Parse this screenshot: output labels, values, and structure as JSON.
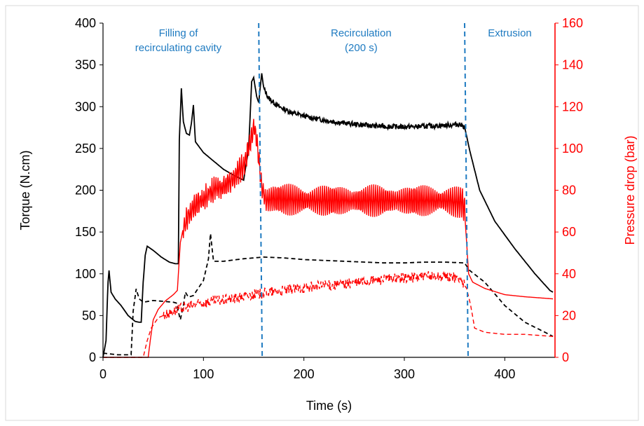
{
  "chart_data": {
    "type": "line",
    "xlabel": "Time (s)",
    "ylabel": "Torque (N.cm)",
    "y2label": "Pressure drop (bar)",
    "xlim": [
      0,
      450
    ],
    "ylim": [
      0,
      400
    ],
    "y2lim": [
      0,
      160
    ],
    "x_ticks": [
      0,
      100,
      200,
      300,
      400
    ],
    "y_ticks": [
      0,
      50,
      100,
      150,
      200,
      250,
      300,
      350,
      400
    ],
    "y2_ticks": [
      0,
      20,
      40,
      60,
      80,
      100,
      120,
      140,
      160
    ],
    "grid": false,
    "colors": {
      "torque": "#000000",
      "pressure": "#ff0000",
      "divider": "#1f7bc1",
      "annotation": "#1f7bc1",
      "right_axis": "#ff0000"
    },
    "vlines": [
      155,
      360
    ],
    "annotations": [
      {
        "lines": [
          "Filling of",
          "recirculating cavity"
        ],
        "x": 75
      },
      {
        "lines": [
          "Recirculation",
          "(200 s)"
        ],
        "x": 257
      },
      {
        "lines": [
          "Extrusion"
        ],
        "x": 405
      }
    ],
    "series": [
      {
        "axis": "left",
        "style": "solid",
        "color": "#000000",
        "points": [
          [
            0,
            0
          ],
          [
            3,
            20
          ],
          [
            5,
            90
          ],
          [
            6,
            104
          ],
          [
            8,
            78
          ],
          [
            12,
            70
          ],
          [
            18,
            62
          ],
          [
            25,
            50
          ],
          [
            32,
            43
          ],
          [
            36,
            42
          ],
          [
            38,
            42
          ],
          [
            40,
            90
          ],
          [
            42,
            122
          ],
          [
            44,
            133
          ],
          [
            50,
            128
          ],
          [
            58,
            120
          ],
          [
            66,
            114
          ],
          [
            72,
            112
          ],
          [
            75,
            112
          ],
          [
            76,
            260
          ],
          [
            78,
            322
          ],
          [
            80,
            282
          ],
          [
            83,
            268
          ],
          [
            86,
            266
          ],
          [
            88,
            280
          ],
          [
            90,
            302
          ],
          [
            92,
            258
          ],
          [
            100,
            245
          ],
          [
            110,
            235
          ],
          [
            120,
            225
          ],
          [
            130,
            218
          ],
          [
            140,
            212
          ],
          [
            145,
            250
          ],
          [
            148,
            330
          ],
          [
            150,
            335
          ],
          [
            153,
            312
          ],
          [
            155,
            305
          ],
          [
            158,
            340
          ],
          [
            160,
            322
          ],
          [
            165,
            310
          ],
          [
            175,
            300
          ],
          [
            190,
            292
          ],
          [
            210,
            286
          ],
          [
            230,
            282
          ],
          [
            250,
            279
          ],
          [
            270,
            277
          ],
          [
            290,
            276
          ],
          [
            310,
            276
          ],
          [
            330,
            277
          ],
          [
            345,
            278
          ],
          [
            355,
            279
          ],
          [
            360,
            276
          ],
          [
            365,
            248
          ],
          [
            375,
            200
          ],
          [
            390,
            163
          ],
          [
            410,
            130
          ],
          [
            430,
            100
          ],
          [
            445,
            80
          ],
          [
            448,
            78
          ]
        ],
        "noise": 3,
        "noise_range": [
          160,
          360
        ]
      },
      {
        "axis": "left",
        "style": "dashed",
        "color": "#000000",
        "points": [
          [
            0,
            5
          ],
          [
            15,
            3
          ],
          [
            28,
            3
          ],
          [
            30,
            55
          ],
          [
            33,
            82
          ],
          [
            36,
            70
          ],
          [
            40,
            66
          ],
          [
            50,
            68
          ],
          [
            60,
            67
          ],
          [
            70,
            66
          ],
          [
            73,
            65
          ],
          [
            75,
            55
          ],
          [
            77,
            45
          ],
          [
            80,
            62
          ],
          [
            82,
            78
          ],
          [
            85,
            72
          ],
          [
            90,
            74
          ],
          [
            100,
            92
          ],
          [
            105,
            118
          ],
          [
            107,
            148
          ],
          [
            110,
            115
          ],
          [
            120,
            115
          ],
          [
            140,
            118
          ],
          [
            160,
            120
          ],
          [
            180,
            119
          ],
          [
            200,
            117
          ],
          [
            220,
            116
          ],
          [
            240,
            115
          ],
          [
            260,
            114
          ],
          [
            280,
            113
          ],
          [
            300,
            113
          ],
          [
            320,
            114
          ],
          [
            340,
            114
          ],
          [
            360,
            113
          ],
          [
            365,
            104
          ],
          [
            380,
            90
          ],
          [
            400,
            62
          ],
          [
            420,
            42
          ],
          [
            440,
            30
          ],
          [
            448,
            25
          ]
        ]
      },
      {
        "axis": "right",
        "style": "solid",
        "color": "#ff0000",
        "points": [
          [
            0,
            0
          ],
          [
            45,
            0
          ],
          [
            47,
            8
          ],
          [
            50,
            18
          ],
          [
            55,
            23
          ],
          [
            62,
            27
          ],
          [
            70,
            30
          ],
          [
            74,
            32
          ],
          [
            77,
            55
          ],
          [
            80,
            62
          ],
          [
            85,
            68
          ],
          [
            90,
            72
          ],
          [
            100,
            76
          ],
          [
            110,
            80
          ],
          [
            120,
            82
          ],
          [
            130,
            86
          ],
          [
            140,
            92
          ],
          [
            145,
            100
          ],
          [
            150,
            110
          ],
          [
            153,
            105
          ],
          [
            155,
            95
          ],
          [
            158,
            82
          ],
          [
            162,
            75
          ],
          [
            170,
            76
          ],
          [
            200,
            75
          ],
          [
            250,
            75
          ],
          [
            300,
            75
          ],
          [
            340,
            75
          ],
          [
            358,
            74
          ],
          [
            360,
            70
          ],
          [
            362,
            55
          ],
          [
            364,
            40
          ],
          [
            368,
            36
          ],
          [
            380,
            33
          ],
          [
            400,
            30
          ],
          [
            420,
            29
          ],
          [
            448,
            28
          ]
        ],
        "noise": 6,
        "noise_range": [
          80,
          360
        ]
      },
      {
        "axis": "right",
        "style": "dashed",
        "color": "#ff0000",
        "points": [
          [
            0,
            0
          ],
          [
            40,
            0
          ],
          [
            44,
            8
          ],
          [
            48,
            14
          ],
          [
            55,
            19
          ],
          [
            65,
            21
          ],
          [
            75,
            23
          ],
          [
            90,
            25
          ],
          [
            110,
            27
          ],
          [
            130,
            28
          ],
          [
            150,
            30
          ],
          [
            180,
            32
          ],
          [
            210,
            34
          ],
          [
            240,
            35
          ],
          [
            270,
            37
          ],
          [
            300,
            38
          ],
          [
            330,
            39
          ],
          [
            355,
            38
          ],
          [
            362,
            33
          ],
          [
            366,
            25
          ],
          [
            370,
            14
          ],
          [
            380,
            12
          ],
          [
            400,
            11
          ],
          [
            420,
            11
          ],
          [
            448,
            10
          ]
        ],
        "noise": 2.5,
        "noise_range": [
          60,
          360
        ]
      }
    ]
  }
}
